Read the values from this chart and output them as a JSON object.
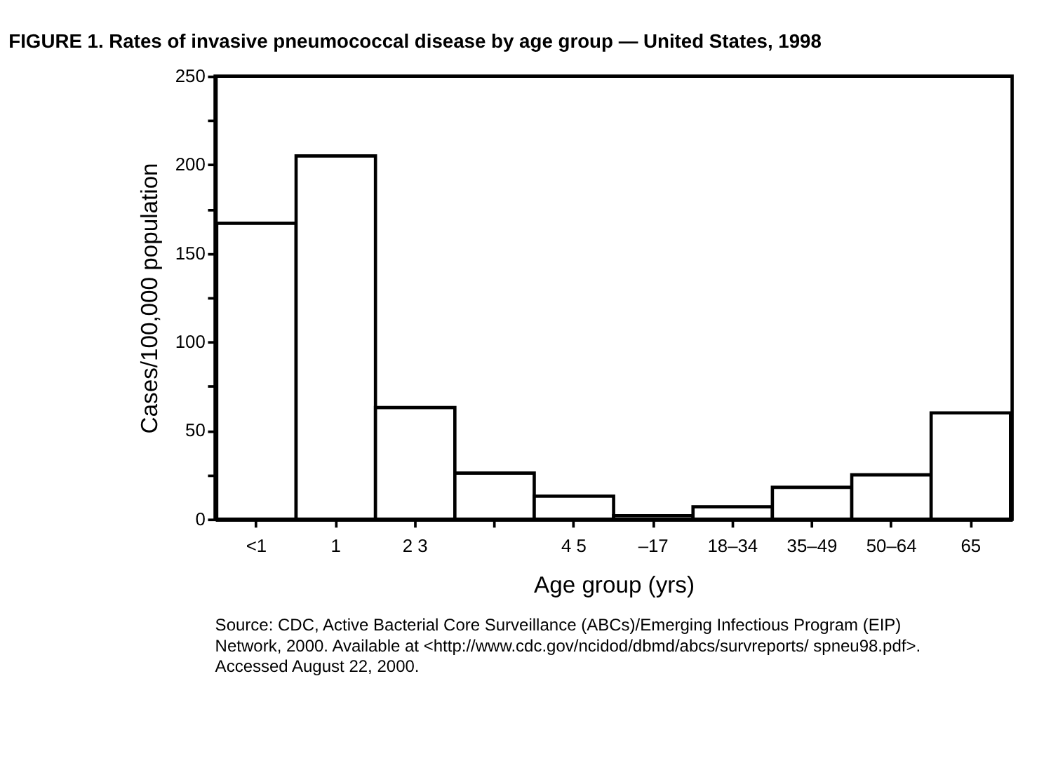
{
  "chart_data": {
    "type": "bar",
    "title": "FIGURE 1. Rates of invasive pneumococcal disease by age group — United States, 1998",
    "xlabel": "Age group (yrs)",
    "ylabel": "Cases/100,000 population",
    "categories": [
      "<1",
      "1",
      "2  3",
      null,
      "4  5",
      "–17",
      "18–34",
      "35–49",
      "50–64",
      "65"
    ],
    "values": [
      167,
      205,
      63,
      26,
      13,
      2,
      7,
      18,
      25,
      60
    ],
    "color": "#ffffff",
    "ylim": [
      0,
      250
    ],
    "yticks": [
      0,
      {
        "value": 25,
        "label": null
      },
      50,
      {
        "value": 75,
        "label": null
      },
      100,
      {
        "value": 125,
        "label": null
      },
      150,
      {
        "value": 175,
        "label": null
      },
      200,
      {
        "value": 225,
        "label": null
      },
      250
    ],
    "grid": false,
    "annotations": [
      "Source: CDC, Active Bacterial Core Surveillance (ABCs)/Emerging Infectious Program (EIP) Network, 2000. Available at <http://www.cdc.gov/ncidod/dbmd/abcs/survreports/ spneu98.pdf>. Accessed August 22, 2000."
    ]
  }
}
